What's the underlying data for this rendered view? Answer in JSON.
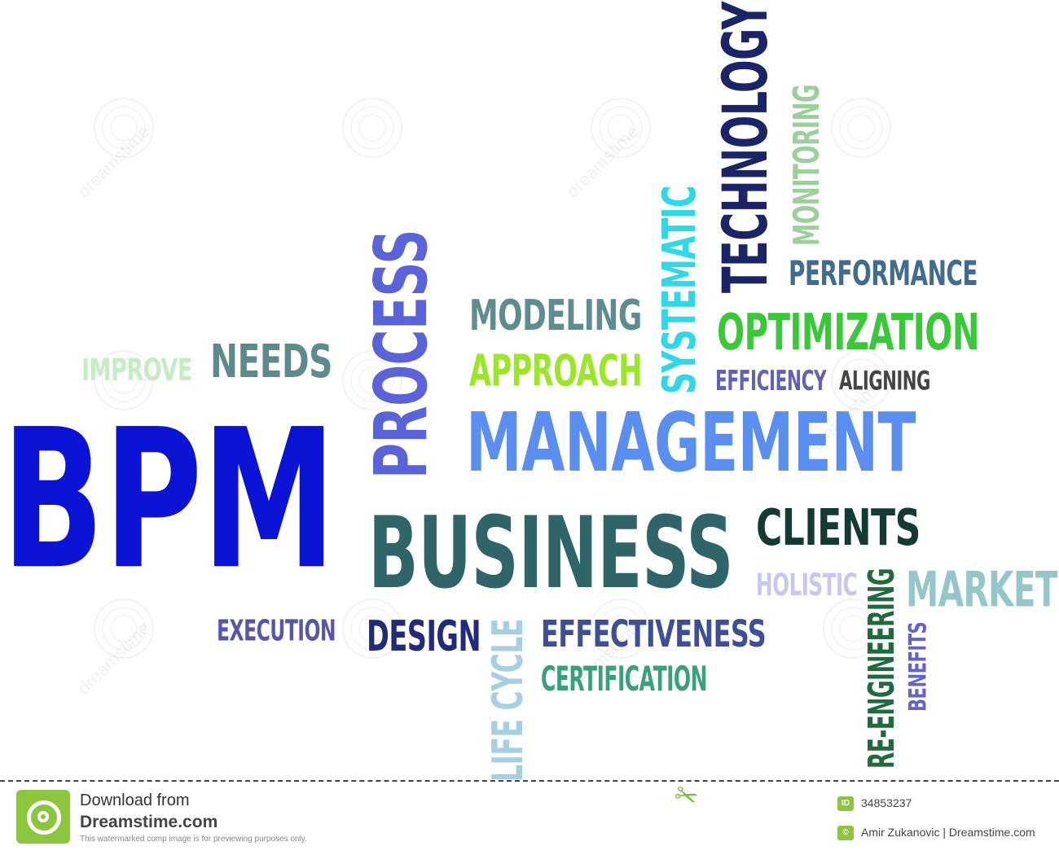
{
  "words": [
    {
      "key": "bpm",
      "text": "BPM",
      "color": "#0b14d4",
      "rotated": false
    },
    {
      "key": "process",
      "text": "PROCESS",
      "color": "#5a63d8",
      "rotated": true
    },
    {
      "key": "management",
      "text": "MANAGEMENT",
      "color": "#5a8ff0",
      "rotated": false
    },
    {
      "key": "business",
      "text": "BUSINESS",
      "color": "#2f6468",
      "rotated": false
    },
    {
      "key": "technology",
      "text": "TECHNOLOGY",
      "color": "#1a2466",
      "rotated": true
    },
    {
      "key": "monitoring",
      "text": "MONITORING",
      "color": "#9ccf99",
      "rotated": true
    },
    {
      "key": "systematic",
      "text": "SYSTEMATIC",
      "color": "#2fd8e6",
      "rotated": true
    },
    {
      "key": "performance",
      "text": "PERFORMANCE",
      "color": "#3f6c8f",
      "rotated": false
    },
    {
      "key": "optimization",
      "text": "OPTIMIZATION",
      "color": "#3ac83a",
      "rotated": false
    },
    {
      "key": "efficiency",
      "text": "EFFICIENCY",
      "color": "#6262b3",
      "rotated": false
    },
    {
      "key": "aligning",
      "text": "ALIGNING",
      "color": "#444444",
      "rotated": false
    },
    {
      "key": "modeling",
      "text": "MODELING",
      "color": "#5f8c8e",
      "rotated": false
    },
    {
      "key": "approach",
      "text": "APPROACH",
      "color": "#9be629",
      "rotated": false
    },
    {
      "key": "needs",
      "text": "NEEDS",
      "color": "#5e8a8c",
      "rotated": false
    },
    {
      "key": "improve",
      "text": "IMPROVE",
      "color": "#c5ecc2",
      "rotated": false
    },
    {
      "key": "clients",
      "text": "CLIENTS",
      "color": "#133a33",
      "rotated": false
    },
    {
      "key": "holistic",
      "text": "HOLISTIC",
      "color": "#c8c8ee",
      "rotated": false
    },
    {
      "key": "market",
      "text": "MARKET",
      "color": "#94c7c9",
      "rotated": false
    },
    {
      "key": "execution",
      "text": "EXECUTION",
      "color": "#5757a8",
      "rotated": false
    },
    {
      "key": "design",
      "text": "DESIGN",
      "color": "#222a7a",
      "rotated": false
    },
    {
      "key": "life_cycle",
      "text": "LIFE CYCLE",
      "color": "#a7cfe2",
      "rotated": true
    },
    {
      "key": "effectiveness",
      "text": "EFFECTIVENESS",
      "color": "#3f4f96",
      "rotated": false
    },
    {
      "key": "certification",
      "text": "CERTIFICATION",
      "color": "#3aa07a",
      "rotated": false
    },
    {
      "key": "re_engineering",
      "text": "RE-ENGINEERING",
      "color": "#1f6b3e",
      "rotated": true
    },
    {
      "key": "benefits",
      "text": "BENEFITS",
      "color": "#6464c8",
      "rotated": true
    }
  ],
  "footer": {
    "download_from": "Download from",
    "site": "Dreamstime.com",
    "notice": "This watermarked comp image is for previewing purposes only.",
    "id_tag": "ID",
    "image_id": "34853237",
    "credit_tag": "©",
    "credit": "Amir Zukanovic | Dreamstime.com"
  },
  "watermark_text": "dreamstime",
  "colors": {
    "brand": "#8cc63f"
  }
}
